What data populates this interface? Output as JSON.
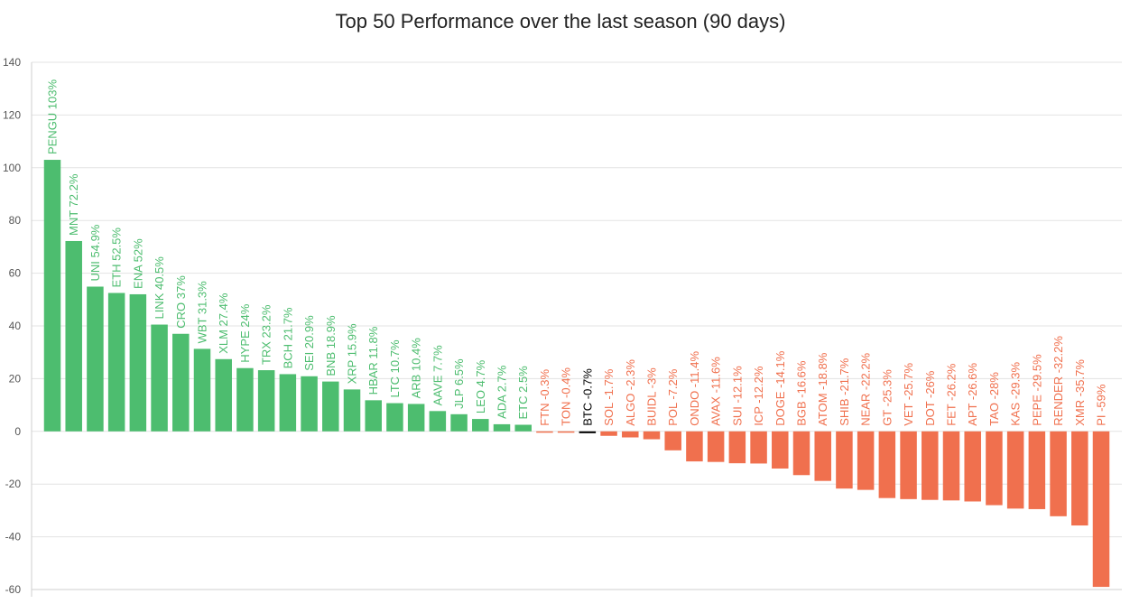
{
  "chart_data": {
    "type": "bar",
    "title": "Top 50 Performance over the last season (90 days)",
    "xlabel": "",
    "ylabel": "",
    "ylim": [
      -60,
      140
    ],
    "yticks": [
      140,
      120,
      100,
      80,
      60,
      40,
      20,
      0,
      -20,
      -40,
      -60
    ],
    "grid": true,
    "legend": "none",
    "colors": {
      "positive": "#4dbd6f",
      "negative": "#f0704e",
      "highlight": "#000000"
    },
    "bars": [
      {
        "label": "PENGU 103%",
        "value": 103
      },
      {
        "label": "MNT 72.2%",
        "value": 72.2
      },
      {
        "label": "UNI 54.9%",
        "value": 54.9
      },
      {
        "label": "ETH 52.5%",
        "value": 52.5
      },
      {
        "label": "ENA 52%",
        "value": 52
      },
      {
        "label": "LINK 40.5%",
        "value": 40.5
      },
      {
        "label": "CRO 37%",
        "value": 37
      },
      {
        "label": "WBT 31.3%",
        "value": 31.3
      },
      {
        "label": "XLM 27.4%",
        "value": 27.4
      },
      {
        "label": "HYPE 24%",
        "value": 24
      },
      {
        "label": "TRX 23.2%",
        "value": 23.2
      },
      {
        "label": "BCH 21.7%",
        "value": 21.7
      },
      {
        "label": "SEI 20.9%",
        "value": 20.9
      },
      {
        "label": "BNB 18.9%",
        "value": 18.9
      },
      {
        "label": "XRP 15.9%",
        "value": 15.9
      },
      {
        "label": "HBAR 11.8%",
        "value": 11.8
      },
      {
        "label": "LTC 10.7%",
        "value": 10.7
      },
      {
        "label": "ARB 10.4%",
        "value": 10.4
      },
      {
        "label": "AAVE 7.7%",
        "value": 7.7
      },
      {
        "label": "JLP 6.5%",
        "value": 6.5
      },
      {
        "label": "LEO 4.7%",
        "value": 4.7
      },
      {
        "label": "ADA 2.7%",
        "value": 2.7
      },
      {
        "label": "ETC 2.5%",
        "value": 2.5
      },
      {
        "label": "FTN -0.3%",
        "value": -0.3
      },
      {
        "label": "TON -0.4%",
        "value": -0.4
      },
      {
        "label": "BTC -0.7%",
        "value": -0.7,
        "highlight": true
      },
      {
        "label": "SOL -1.7%",
        "value": -1.7
      },
      {
        "label": "ALGO -2.3%",
        "value": -2.3
      },
      {
        "label": "BUIDL -3%",
        "value": -3
      },
      {
        "label": "POL -7.2%",
        "value": -7.2
      },
      {
        "label": "ONDO -11.4%",
        "value": -11.4
      },
      {
        "label": "AVAX -11.6%",
        "value": -11.6
      },
      {
        "label": "SUI -12.1%",
        "value": -12.1
      },
      {
        "label": "ICP -12.2%",
        "value": -12.2
      },
      {
        "label": "DOGE -14.1%",
        "value": -14.1
      },
      {
        "label": "BGB -16.6%",
        "value": -16.6
      },
      {
        "label": "ATOM -18.8%",
        "value": -18.8
      },
      {
        "label": "SHIB -21.7%",
        "value": -21.7
      },
      {
        "label": "NEAR -22.2%",
        "value": -22.2
      },
      {
        "label": "GT -25.3%",
        "value": -25.3
      },
      {
        "label": "VET -25.7%",
        "value": -25.7
      },
      {
        "label": "DOT -26%",
        "value": -26
      },
      {
        "label": "FET -26.2%",
        "value": -26.2
      },
      {
        "label": "APT -26.6%",
        "value": -26.6
      },
      {
        "label": "TAO -28%",
        "value": -28
      },
      {
        "label": "KAS -29.3%",
        "value": -29.3
      },
      {
        "label": "PEPE -29.5%",
        "value": -29.5
      },
      {
        "label": "RENDER -32.2%",
        "value": -32.2
      },
      {
        "label": "XMR -35.7%",
        "value": -35.7
      },
      {
        "label": "PI -59%",
        "value": -59
      }
    ]
  }
}
